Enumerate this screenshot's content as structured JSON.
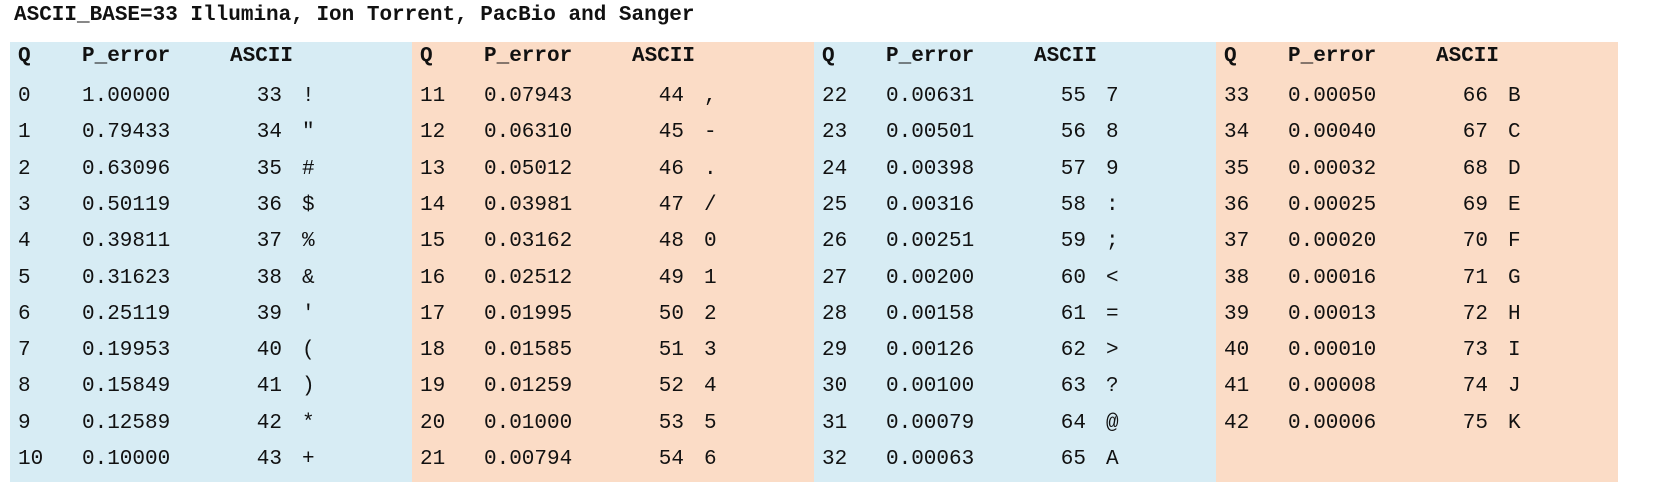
{
  "title": "ASCII_BASE=33 Illumina, Ion Torrent, PacBio and Sanger",
  "headers": {
    "q": "Q",
    "p_error": "P_error",
    "ascii": "ASCII"
  },
  "colors": {
    "blue_panel": "#d7ecf4",
    "peach_panel": "#fbdcc6"
  },
  "panels": [
    {
      "rows": [
        {
          "q": "0",
          "p": "1.00000",
          "code": "33",
          "ch": "!"
        },
        {
          "q": "1",
          "p": "0.79433",
          "code": "34",
          "ch": "\""
        },
        {
          "q": "2",
          "p": "0.63096",
          "code": "35",
          "ch": "#"
        },
        {
          "q": "3",
          "p": "0.50119",
          "code": "36",
          "ch": "$"
        },
        {
          "q": "4",
          "p": "0.39811",
          "code": "37",
          "ch": "%"
        },
        {
          "q": "5",
          "p": "0.31623",
          "code": "38",
          "ch": "&"
        },
        {
          "q": "6",
          "p": "0.25119",
          "code": "39",
          "ch": "'"
        },
        {
          "q": "7",
          "p": "0.19953",
          "code": "40",
          "ch": "("
        },
        {
          "q": "8",
          "p": "0.15849",
          "code": "41",
          "ch": ")"
        },
        {
          "q": "9",
          "p": "0.12589",
          "code": "42",
          "ch": "*"
        },
        {
          "q": "10",
          "p": "0.10000",
          "code": "43",
          "ch": "+"
        }
      ]
    },
    {
      "rows": [
        {
          "q": "11",
          "p": "0.07943",
          "code": "44",
          "ch": ","
        },
        {
          "q": "12",
          "p": "0.06310",
          "code": "45",
          "ch": "-"
        },
        {
          "q": "13",
          "p": "0.05012",
          "code": "46",
          "ch": "."
        },
        {
          "q": "14",
          "p": "0.03981",
          "code": "47",
          "ch": "/"
        },
        {
          "q": "15",
          "p": "0.03162",
          "code": "48",
          "ch": "0"
        },
        {
          "q": "16",
          "p": "0.02512",
          "code": "49",
          "ch": "1"
        },
        {
          "q": "17",
          "p": "0.01995",
          "code": "50",
          "ch": "2"
        },
        {
          "q": "18",
          "p": "0.01585",
          "code": "51",
          "ch": "3"
        },
        {
          "q": "19",
          "p": "0.01259",
          "code": "52",
          "ch": "4"
        },
        {
          "q": "20",
          "p": "0.01000",
          "code": "53",
          "ch": "5"
        },
        {
          "q": "21",
          "p": "0.00794",
          "code": "54",
          "ch": "6"
        }
      ]
    },
    {
      "rows": [
        {
          "q": "22",
          "p": "0.00631",
          "code": "55",
          "ch": "7"
        },
        {
          "q": "23",
          "p": "0.00501",
          "code": "56",
          "ch": "8"
        },
        {
          "q": "24",
          "p": "0.00398",
          "code": "57",
          "ch": "9"
        },
        {
          "q": "25",
          "p": "0.00316",
          "code": "58",
          "ch": ":"
        },
        {
          "q": "26",
          "p": "0.00251",
          "code": "59",
          "ch": ";"
        },
        {
          "q": "27",
          "p": "0.00200",
          "code": "60",
          "ch": "<"
        },
        {
          "q": "28",
          "p": "0.00158",
          "code": "61",
          "ch": "="
        },
        {
          "q": "29",
          "p": "0.00126",
          "code": "62",
          "ch": ">"
        },
        {
          "q": "30",
          "p": "0.00100",
          "code": "63",
          "ch": "?"
        },
        {
          "q": "31",
          "p": "0.00079",
          "code": "64",
          "ch": "@"
        },
        {
          "q": "32",
          "p": "0.00063",
          "code": "65",
          "ch": "A"
        }
      ]
    },
    {
      "rows": [
        {
          "q": "33",
          "p": "0.00050",
          "code": "66",
          "ch": "B"
        },
        {
          "q": "34",
          "p": "0.00040",
          "code": "67",
          "ch": "C"
        },
        {
          "q": "35",
          "p": "0.00032",
          "code": "68",
          "ch": "D"
        },
        {
          "q": "36",
          "p": "0.00025",
          "code": "69",
          "ch": "E"
        },
        {
          "q": "37",
          "p": "0.00020",
          "code": "70",
          "ch": "F"
        },
        {
          "q": "38",
          "p": "0.00016",
          "code": "71",
          "ch": "G"
        },
        {
          "q": "39",
          "p": "0.00013",
          "code": "72",
          "ch": "H"
        },
        {
          "q": "40",
          "p": "0.00010",
          "code": "73",
          "ch": "I"
        },
        {
          "q": "41",
          "p": "0.00008",
          "code": "74",
          "ch": "J"
        },
        {
          "q": "42",
          "p": "0.00006",
          "code": "75",
          "ch": "K"
        }
      ]
    }
  ]
}
